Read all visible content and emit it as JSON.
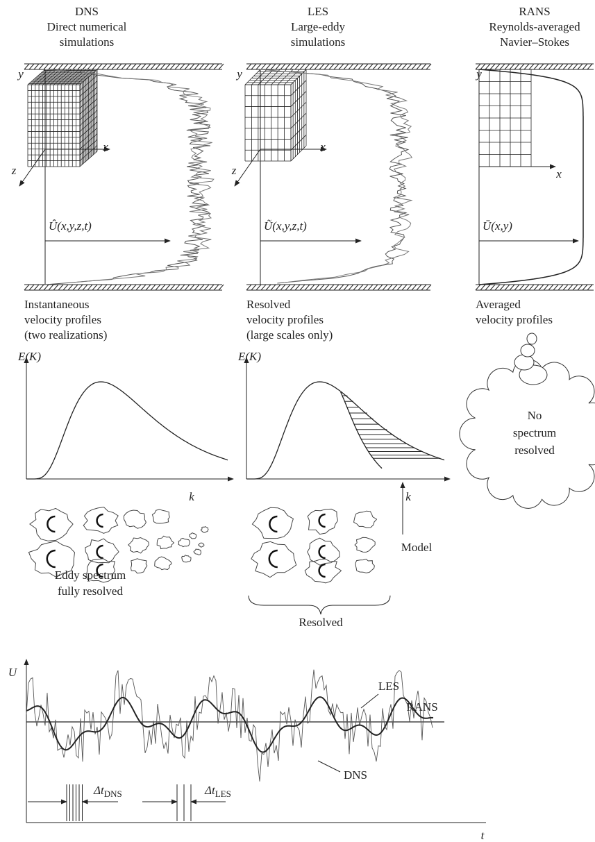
{
  "columns": [
    {
      "title": "DNS",
      "subtitle": [
        "Direct numerical",
        "simulations"
      ],
      "axis_y": "y",
      "axis_x": "x",
      "axis_z": "z",
      "velocity": "Û(x,y,z,t)",
      "caption": [
        "Instantaneous",
        "velocity profiles",
        "(two realizations)"
      ]
    },
    {
      "title": "LES",
      "subtitle": [
        "Large-eddy",
        "simulations"
      ],
      "axis_y": "y",
      "axis_x": "x",
      "axis_z": "z",
      "velocity": "Ũ(x,y,z,t)",
      "caption": [
        "Resolved",
        "velocity profiles",
        "(large scales only)"
      ]
    },
    {
      "title": "RANS",
      "subtitle": [
        "Reynolds-averaged",
        "Navier–Stokes"
      ],
      "axis_y": "y",
      "axis_x": "x",
      "velocity": "Ū(x,y)",
      "caption": [
        "Averaged",
        "velocity profiles"
      ]
    }
  ],
  "spectra": [
    {
      "y_label": "E(K)",
      "x_label": "k",
      "caption": [
        "Eddy spectrum",
        "fully resolved"
      ]
    },
    {
      "y_label": "E(K)",
      "x_label": "k",
      "model": "Model",
      "caption": [
        "Resolved"
      ]
    }
  ],
  "rans_spectrum": [
    "No",
    "spectrum",
    "resolved"
  ],
  "time_series": {
    "y_label": "U",
    "x_label": "t",
    "les": "LES",
    "rans": "RANS",
    "dns": "DNS",
    "dt_dns": {
      "symbol": "Δt",
      "sub": "DNS"
    },
    "dt_les": {
      "symbol": "Δt",
      "sub": "LES"
    }
  }
}
